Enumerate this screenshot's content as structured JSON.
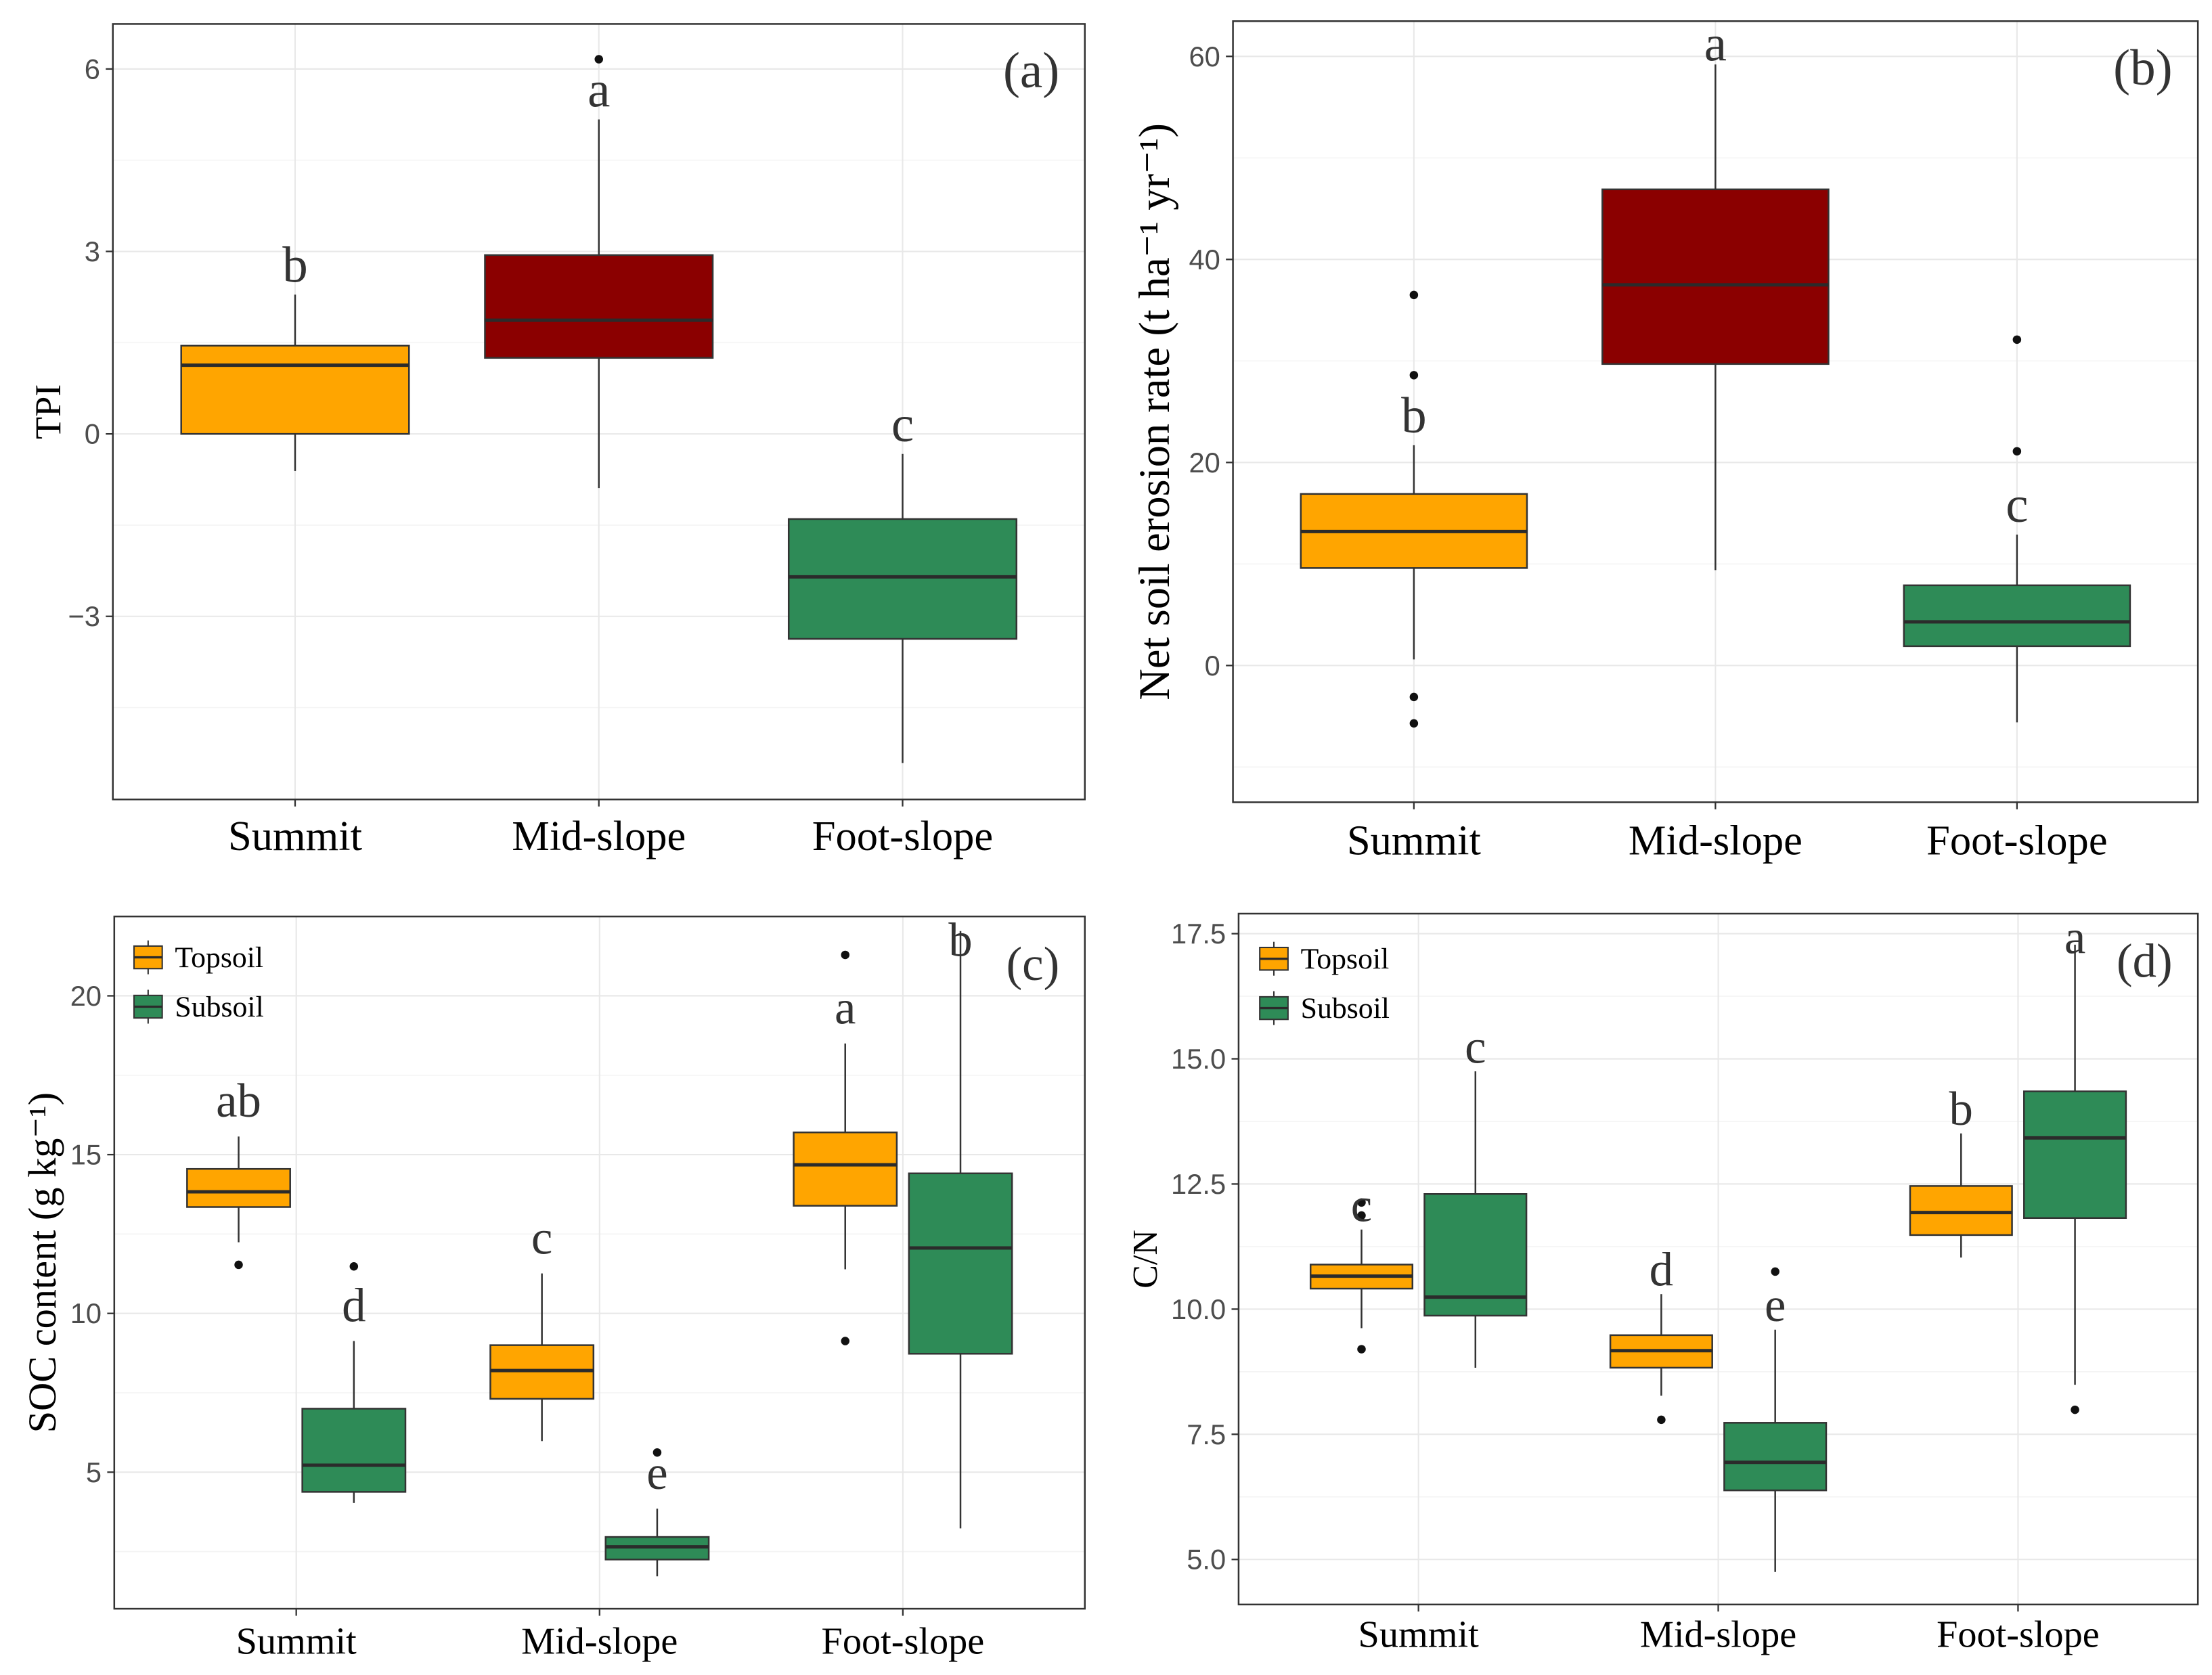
{
  "chart_data": [
    {
      "type": "box",
      "panel_label": "(a)",
      "ylabel": "TPI",
      "ylim": [
        -6.01,
        6.74
      ],
      "yticks": [
        6,
        3,
        0,
        -3
      ],
      "ytick_labels": [
        "6",
        "3",
        "0",
        "−3"
      ],
      "categories": [
        "Summit",
        "Mid-slope",
        "Foot-slope"
      ],
      "series": [
        {
          "boxes": [
            {
              "fill": "#FFA500",
              "min": -0.61,
              "q1": 0.0,
              "median": 1.13,
              "q3": 1.45,
              "max": 2.29,
              "outliers": [],
              "letter": "b"
            },
            {
              "fill": "#8B0000",
              "min": -0.89,
              "q1": 1.25,
              "median": 1.87,
              "q3": 2.94,
              "max": 5.17,
              "outliers": [
                6.16
              ],
              "letter": "a"
            },
            {
              "fill": "#2E8B57",
              "min": -5.41,
              "q1": -3.37,
              "median": -2.35,
              "q3": -1.4,
              "max": -0.33,
              "outliers": [],
              "letter": "c"
            }
          ]
        }
      ]
    },
    {
      "type": "box",
      "panel_label": "(b)",
      "ylabel": "Net soil erosion rate (t ha⁻¹ yr⁻¹)",
      "ylim": [
        -13.47,
        63.47
      ],
      "yticks": [
        60,
        40,
        20,
        0
      ],
      "ytick_labels": [
        "60",
        "40",
        "20",
        "0"
      ],
      "categories": [
        "Summit",
        "Mid-slope",
        "Foot-slope"
      ],
      "series": [
        {
          "boxes": [
            {
              "fill": "#FFA500",
              "min": 0.6,
              "q1": 9.6,
              "median": 13.2,
              "q3": 16.9,
              "max": 21.7,
              "outliers": [
                36.5,
                28.6,
                -3.1,
                -5.7
              ],
              "letter": "b"
            },
            {
              "fill": "#8B0000",
              "min": 9.4,
              "q1": 29.7,
              "median": 37.5,
              "q3": 46.9,
              "max": 59.2,
              "outliers": [],
              "letter": "a"
            },
            {
              "fill": "#2E8B57",
              "min": -5.6,
              "q1": 1.9,
              "median": 4.3,
              "q3": 7.9,
              "max": 12.9,
              "outliers": [
                32.1,
                21.1
              ],
              "letter": "c"
            }
          ]
        }
      ]
    },
    {
      "type": "box",
      "panel_label": "(c)",
      "ylabel": "SOC content (g kg⁻¹)",
      "ylim": [
        0.7,
        22.5
      ],
      "yticks": [
        20,
        15,
        10,
        5
      ],
      "ytick_labels": [
        "20",
        "15",
        "10",
        "5"
      ],
      "categories": [
        "Summit",
        "Mid-slope",
        "Foot-slope"
      ],
      "series": [
        {
          "name": "Topsoil",
          "fill": "#FFA500",
          "boxes": [
            {
              "min": 12.24,
              "q1": 13.35,
              "median": 13.83,
              "q3": 14.55,
              "max": 15.57,
              "outliers": [
                11.53
              ],
              "letter": "ab"
            },
            {
              "min": 5.98,
              "q1": 7.31,
              "median": 8.2,
              "q3": 9.0,
              "max": 11.26,
              "outliers": [],
              "letter": "c"
            },
            {
              "min": 11.39,
              "q1": 13.39,
              "median": 14.68,
              "q3": 15.7,
              "max": 18.5,
              "outliers": [
                21.29,
                9.13
              ],
              "letter": "a"
            }
          ]
        },
        {
          "name": "Subsoil",
          "fill": "#2E8B57",
          "boxes": [
            {
              "min": 4.03,
              "q1": 4.38,
              "median": 5.22,
              "q3": 7.0,
              "max": 9.13,
              "outliers": [
                11.48
              ],
              "letter": "d"
            },
            {
              "min": 1.72,
              "q1": 2.25,
              "median": 2.65,
              "q3": 2.96,
              "max": 3.85,
              "outliers": [
                5.62
              ],
              "letter": "e"
            },
            {
              "min": 3.23,
              "q1": 8.73,
              "median": 12.06,
              "q3": 14.41,
              "max": 22.04,
              "outliers": [],
              "letter": "b"
            }
          ]
        }
      ]
    },
    {
      "type": "box",
      "panel_label": "(d)",
      "ylabel": "C/N",
      "ylim": [
        4.1,
        17.9
      ],
      "yticks": [
        17.5,
        15,
        12.5,
        10,
        7.5,
        5
      ],
      "ytick_labels": [
        "17.5",
        "15.0",
        "12.5",
        "10.0",
        "7.5",
        "5.0"
      ],
      "categories": [
        "Summit",
        "Mid-slope",
        "Foot-slope"
      ],
      "series": [
        {
          "name": "Topsoil",
          "fill": "#FFA500",
          "boxes": [
            {
              "min": 9.62,
              "q1": 10.41,
              "median": 10.66,
              "q3": 10.89,
              "max": 11.59,
              "outliers": [
                12.13,
                11.87,
                9.2
              ],
              "letter": "c"
            },
            {
              "min": 8.27,
              "q1": 8.83,
              "median": 9.17,
              "q3": 9.48,
              "max": 10.3,
              "outliers": [
                7.79
              ],
              "letter": "d"
            },
            {
              "min": 11.03,
              "q1": 11.48,
              "median": 11.93,
              "q3": 12.46,
              "max": 13.51,
              "outliers": [],
              "letter": "b"
            }
          ]
        },
        {
          "name": "Subsoil",
          "fill": "#2E8B57",
          "boxes": [
            {
              "min": 8.83,
              "q1": 9.87,
              "median": 10.24,
              "q3": 12.3,
              "max": 14.75,
              "outliers": [],
              "letter": "c"
            },
            {
              "min": 4.75,
              "q1": 6.38,
              "median": 6.94,
              "q3": 7.73,
              "max": 9.59,
              "outliers": [
                10.75
              ],
              "letter": "e"
            },
            {
              "min": 8.49,
              "q1": 11.82,
              "median": 13.42,
              "q3": 14.35,
              "max": 17.28,
              "outliers": [
                7.99
              ],
              "letter": "a"
            }
          ]
        }
      ]
    }
  ]
}
